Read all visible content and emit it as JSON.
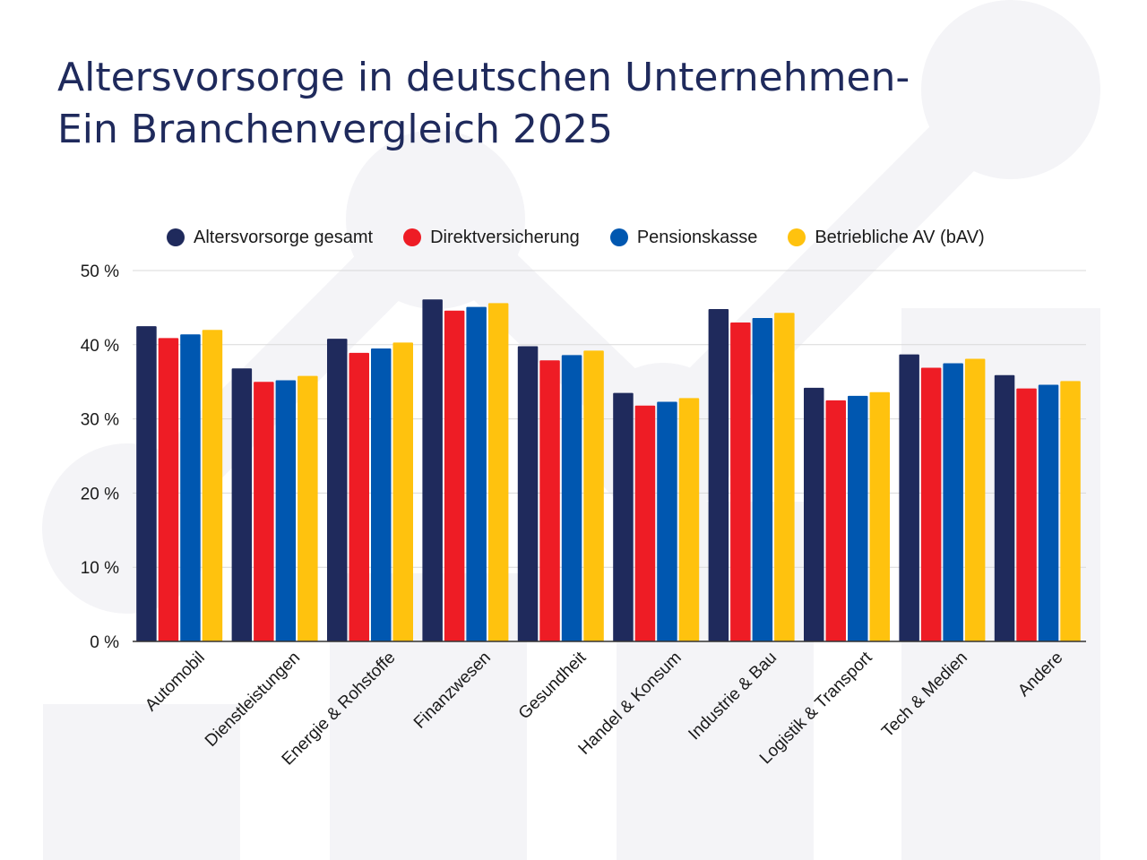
{
  "title_lines": [
    "Altersvorsorge in deutschen Unternehmen-",
    "Ein Branchenvergleich 2025"
  ],
  "colors": {
    "title": "#1f2a5c",
    "decor": "#f4f4f7",
    "grid": "#d9d9d9",
    "axis": "#333333"
  },
  "chart_data": {
    "type": "bar",
    "title": "Altersvorsorge in deutschen Unternehmen- Ein Branchenvergleich 2025",
    "categories": [
      "Automobil",
      "Dienstleistungen",
      "Energie & Rohstoffe",
      "Finanzwesen",
      "Gesundheit",
      "Handel & Konsum",
      "Industrie & Bau",
      "Logistik & Transport",
      "Tech & Medien",
      "Andere"
    ],
    "series": [
      {
        "name": "Altersvorsorge gesamt",
        "color": "#1f2a5c",
        "values": [
          42.5,
          36.8,
          40.8,
          46.1,
          39.8,
          33.5,
          44.8,
          34.2,
          38.7,
          35.9
        ]
      },
      {
        "name": "Direktversicherung",
        "color": "#ee1c25",
        "values": [
          40.9,
          35.0,
          38.9,
          44.6,
          37.9,
          31.8,
          43.0,
          32.5,
          36.9,
          34.1
        ]
      },
      {
        "name": "Pensionskasse",
        "color": "#0057b0",
        "values": [
          41.4,
          35.2,
          39.5,
          45.1,
          38.6,
          32.3,
          43.6,
          33.1,
          37.5,
          34.6
        ]
      },
      {
        "name": "Betriebliche AV (bAV)",
        "color": "#ffc20e",
        "values": [
          42.0,
          35.8,
          40.3,
          45.6,
          39.2,
          32.8,
          44.3,
          33.6,
          38.1,
          35.1
        ]
      }
    ],
    "ylim": [
      0,
      50
    ],
    "yticks": [
      0,
      10,
      20,
      30,
      40,
      50
    ],
    "ytick_labels": [
      "0 %",
      "10 %",
      "20 %",
      "30 %",
      "40 %",
      "50 %"
    ],
    "xlabel": "",
    "ylabel": "",
    "grid": true,
    "legend": "top"
  }
}
